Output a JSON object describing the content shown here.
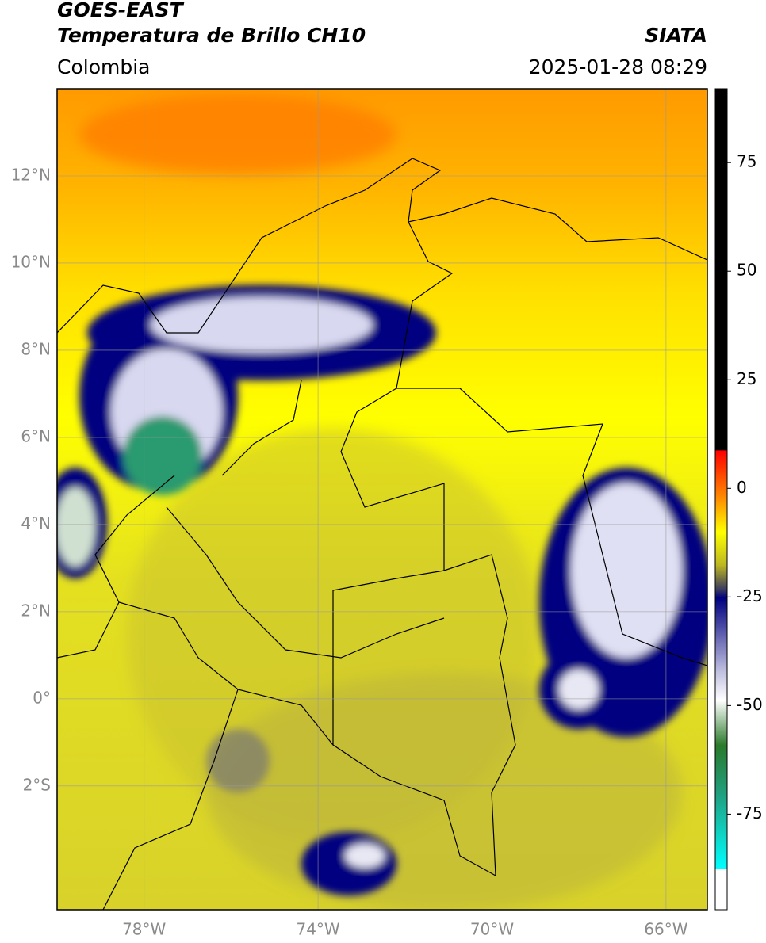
{
  "header": {
    "title": "GOES-EAST",
    "subtitle": "Temperatura de Brillo CH10",
    "region": "Colombia",
    "source": "SIATA",
    "datetime": "2025-01-28 08:29"
  },
  "map": {
    "xlim": [
      -80,
      -65.05
    ],
    "ylim": [
      -4.84,
      14
    ],
    "lat_ticks": [
      {
        "value": 12,
        "label": "12°N"
      },
      {
        "value": 10,
        "label": "10°N"
      },
      {
        "value": 8,
        "label": "8°N"
      },
      {
        "value": 6,
        "label": "6°N"
      },
      {
        "value": 4,
        "label": "4°N"
      },
      {
        "value": 2,
        "label": "2°N"
      },
      {
        "value": 0,
        "label": "0°"
      },
      {
        "value": -2,
        "label": "2°S"
      }
    ],
    "lon_ticks": [
      {
        "value": -78,
        "label": "78°W"
      },
      {
        "value": -74,
        "label": "74°W"
      },
      {
        "value": -70,
        "label": "70°W"
      },
      {
        "value": -66,
        "label": "66°W"
      }
    ]
  },
  "colorbar": {
    "lim": [
      -97,
      92
    ],
    "ticks": [
      75,
      50,
      25,
      0,
      -25,
      -50,
      -75
    ]
  }
}
